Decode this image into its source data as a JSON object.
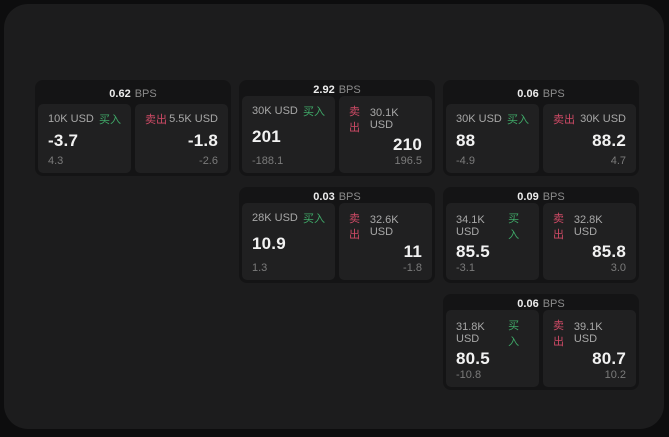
{
  "page": {
    "bps_suffix": "BPS",
    "buy_label": "买入",
    "sell_label": "卖出"
  },
  "colors": {
    "outer_bg": "#0d0d0e",
    "panel_bg": "#1c1c1d",
    "card_bg": "#141415",
    "tile_bg": "#202021",
    "buy_green": "#3fa868",
    "sell_red": "#cf4a66",
    "price_text": "#f2f2f2",
    "size_text": "#a8a8a8",
    "skew_text": "#7b7b7b"
  },
  "cards": [
    {
      "bps": "0.62",
      "buy": {
        "size": "10K USD",
        "price": "-3.7",
        "skew": "4.3"
      },
      "sell": {
        "size": "5.5K USD",
        "price": "-1.8",
        "skew": "-2.6"
      }
    },
    {
      "bps": "2.92",
      "buy": {
        "size": "30K USD",
        "price": "201",
        "skew": "-188.1"
      },
      "sell": {
        "size": "30.1K USD",
        "price": "210",
        "skew": "196.5"
      }
    },
    {
      "bps": "0.06",
      "buy": {
        "size": "30K USD",
        "price": "88",
        "skew": "-4.9"
      },
      "sell": {
        "size": "30K USD",
        "price": "88.2",
        "skew": "4.7"
      }
    },
    {
      "bps": "0.03",
      "buy": {
        "size": "28K USD",
        "price": "10.9",
        "skew": "1.3"
      },
      "sell": {
        "size": "32.6K USD",
        "price": "11",
        "skew": "-1.8"
      }
    },
    {
      "bps": "0.09",
      "buy": {
        "size": "34.1K USD",
        "price": "85.5",
        "skew": "-3.1"
      },
      "sell": {
        "size": "32.8K USD",
        "price": "85.8",
        "skew": "3.0"
      }
    },
    {
      "bps": "0.06",
      "buy": {
        "size": "31.8K USD",
        "price": "80.5",
        "skew": "-10.8"
      },
      "sell": {
        "size": "39.1K USD",
        "price": "80.7",
        "skew": "10.2"
      }
    }
  ]
}
